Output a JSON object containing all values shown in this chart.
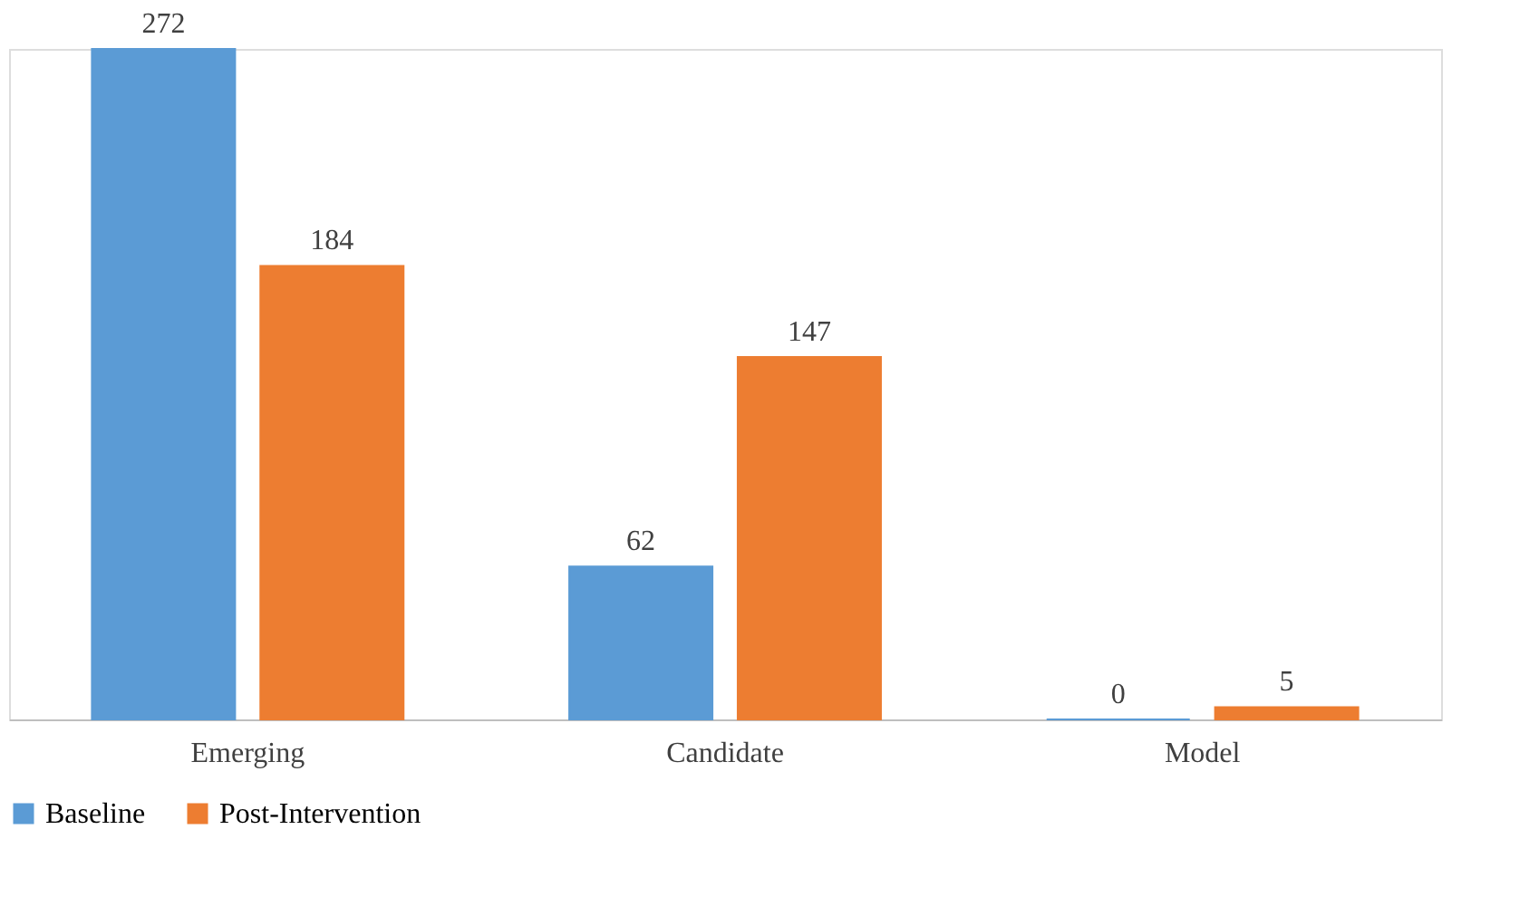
{
  "chart_data": {
    "type": "bar",
    "categories": [
      "Emerging",
      "Candidate",
      "Model"
    ],
    "series": [
      {
        "name": "Baseline",
        "color": "#5b9bd5",
        "values": [
          272,
          62,
          0
        ]
      },
      {
        "name": "Post-Intervention",
        "color": "#ed7d31",
        "values": [
          184,
          147,
          5
        ]
      }
    ],
    "data_labels": true,
    "legend": "bottom",
    "grid": false
  }
}
